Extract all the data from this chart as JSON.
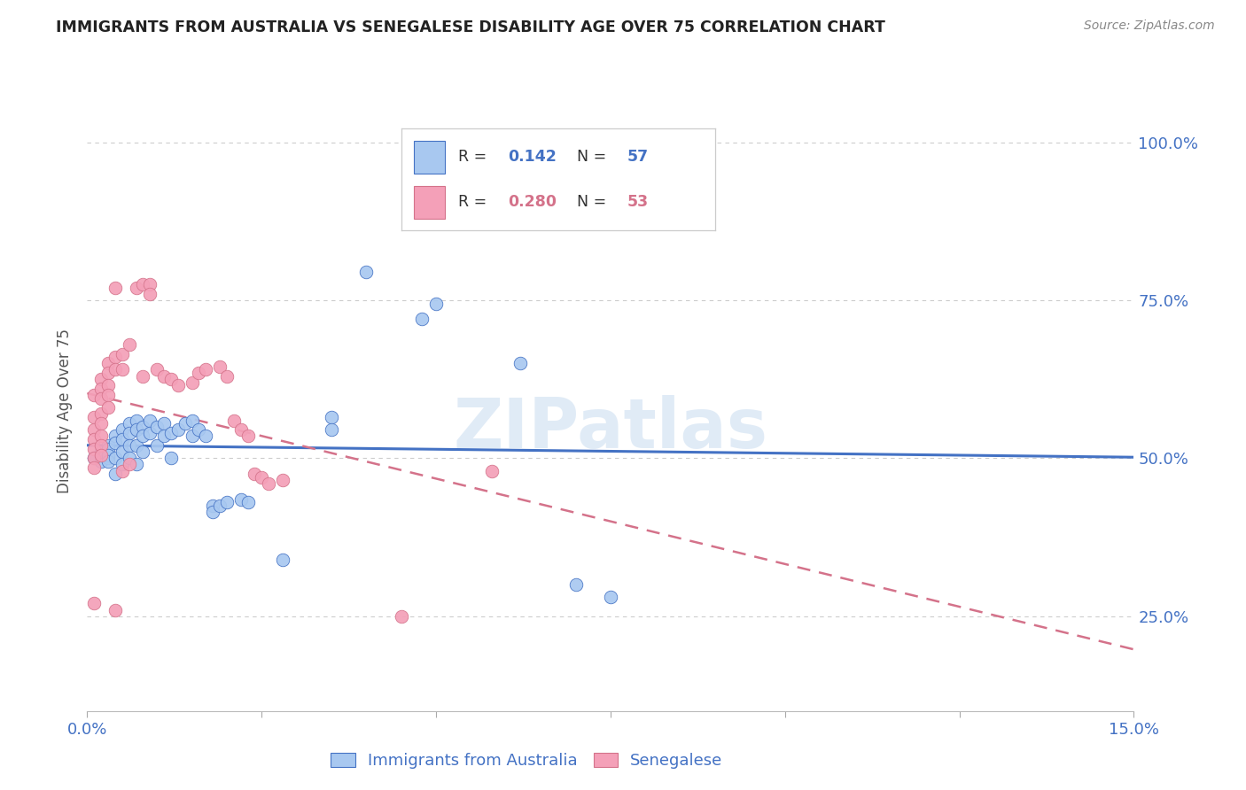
{
  "title": "IMMIGRANTS FROM AUSTRALIA VS SENEGALESE DISABILITY AGE OVER 75 CORRELATION CHART",
  "source": "Source: ZipAtlas.com",
  "ylabel": "Disability Age Over 75",
  "watermark": "ZIPatlas",
  "xlim": [
    0.0,
    0.15
  ],
  "ylim": [
    0.1,
    1.05
  ],
  "australia_scatter": [
    [
      0.001,
      0.5
    ],
    [
      0.002,
      0.505
    ],
    [
      0.002,
      0.495
    ],
    [
      0.002,
      0.51
    ],
    [
      0.003,
      0.52
    ],
    [
      0.003,
      0.5
    ],
    [
      0.003,
      0.515
    ],
    [
      0.003,
      0.505
    ],
    [
      0.003,
      0.495
    ],
    [
      0.004,
      0.535
    ],
    [
      0.004,
      0.525
    ],
    [
      0.004,
      0.5
    ],
    [
      0.004,
      0.475
    ],
    [
      0.005,
      0.545
    ],
    [
      0.005,
      0.53
    ],
    [
      0.005,
      0.51
    ],
    [
      0.005,
      0.49
    ],
    [
      0.006,
      0.555
    ],
    [
      0.006,
      0.54
    ],
    [
      0.006,
      0.52
    ],
    [
      0.006,
      0.5
    ],
    [
      0.007,
      0.56
    ],
    [
      0.007,
      0.545
    ],
    [
      0.007,
      0.52
    ],
    [
      0.007,
      0.49
    ],
    [
      0.008,
      0.55
    ],
    [
      0.008,
      0.535
    ],
    [
      0.008,
      0.51
    ],
    [
      0.009,
      0.56
    ],
    [
      0.009,
      0.54
    ],
    [
      0.01,
      0.55
    ],
    [
      0.01,
      0.52
    ],
    [
      0.011,
      0.555
    ],
    [
      0.011,
      0.535
    ],
    [
      0.012,
      0.54
    ],
    [
      0.012,
      0.5
    ],
    [
      0.013,
      0.545
    ],
    [
      0.014,
      0.555
    ],
    [
      0.015,
      0.56
    ],
    [
      0.015,
      0.535
    ],
    [
      0.016,
      0.545
    ],
    [
      0.017,
      0.535
    ],
    [
      0.018,
      0.425
    ],
    [
      0.018,
      0.415
    ],
    [
      0.019,
      0.425
    ],
    [
      0.02,
      0.43
    ],
    [
      0.022,
      0.435
    ],
    [
      0.023,
      0.43
    ],
    [
      0.028,
      0.34
    ],
    [
      0.035,
      0.565
    ],
    [
      0.035,
      0.545
    ],
    [
      0.04,
      0.795
    ],
    [
      0.048,
      0.72
    ],
    [
      0.05,
      0.745
    ],
    [
      0.062,
      0.65
    ],
    [
      0.07,
      0.3
    ],
    [
      0.075,
      0.28
    ]
  ],
  "senegalese_scatter": [
    [
      0.001,
      0.6
    ],
    [
      0.001,
      0.565
    ],
    [
      0.001,
      0.545
    ],
    [
      0.001,
      0.53
    ],
    [
      0.001,
      0.515
    ],
    [
      0.001,
      0.5
    ],
    [
      0.001,
      0.485
    ],
    [
      0.002,
      0.625
    ],
    [
      0.002,
      0.61
    ],
    [
      0.002,
      0.595
    ],
    [
      0.002,
      0.57
    ],
    [
      0.002,
      0.555
    ],
    [
      0.002,
      0.535
    ],
    [
      0.002,
      0.52
    ],
    [
      0.002,
      0.505
    ],
    [
      0.003,
      0.65
    ],
    [
      0.003,
      0.635
    ],
    [
      0.003,
      0.615
    ],
    [
      0.003,
      0.6
    ],
    [
      0.003,
      0.58
    ],
    [
      0.004,
      0.77
    ],
    [
      0.004,
      0.66
    ],
    [
      0.004,
      0.64
    ],
    [
      0.005,
      0.665
    ],
    [
      0.005,
      0.64
    ],
    [
      0.006,
      0.68
    ],
    [
      0.007,
      0.77
    ],
    [
      0.008,
      0.775
    ],
    [
      0.008,
      0.63
    ],
    [
      0.009,
      0.775
    ],
    [
      0.009,
      0.76
    ],
    [
      0.01,
      0.64
    ],
    [
      0.011,
      0.63
    ],
    [
      0.012,
      0.625
    ],
    [
      0.013,
      0.615
    ],
    [
      0.015,
      0.62
    ],
    [
      0.016,
      0.635
    ],
    [
      0.017,
      0.64
    ],
    [
      0.019,
      0.645
    ],
    [
      0.02,
      0.63
    ],
    [
      0.021,
      0.56
    ],
    [
      0.022,
      0.545
    ],
    [
      0.023,
      0.535
    ],
    [
      0.024,
      0.475
    ],
    [
      0.025,
      0.47
    ],
    [
      0.026,
      0.46
    ],
    [
      0.028,
      0.465
    ],
    [
      0.001,
      0.27
    ],
    [
      0.004,
      0.26
    ],
    [
      0.005,
      0.48
    ],
    [
      0.006,
      0.49
    ],
    [
      0.045,
      0.25
    ],
    [
      0.058,
      0.48
    ]
  ],
  "australia_line_color": "#4472c4",
  "senegalese_line_color": "#d4728a",
  "australia_dot_color": "#a8c8f0",
  "senegalese_dot_color": "#f4a0b8",
  "background_color": "#ffffff",
  "grid_color": "#cccccc",
  "tick_color": "#4472c4",
  "title_color": "#222222",
  "legend_aus_R": "0.142",
  "legend_aus_N": "57",
  "legend_sen_R": "0.280",
  "legend_sen_N": "53",
  "legend_label_aus": "Immigrants from Australia",
  "legend_label_sen": "Senegalese"
}
